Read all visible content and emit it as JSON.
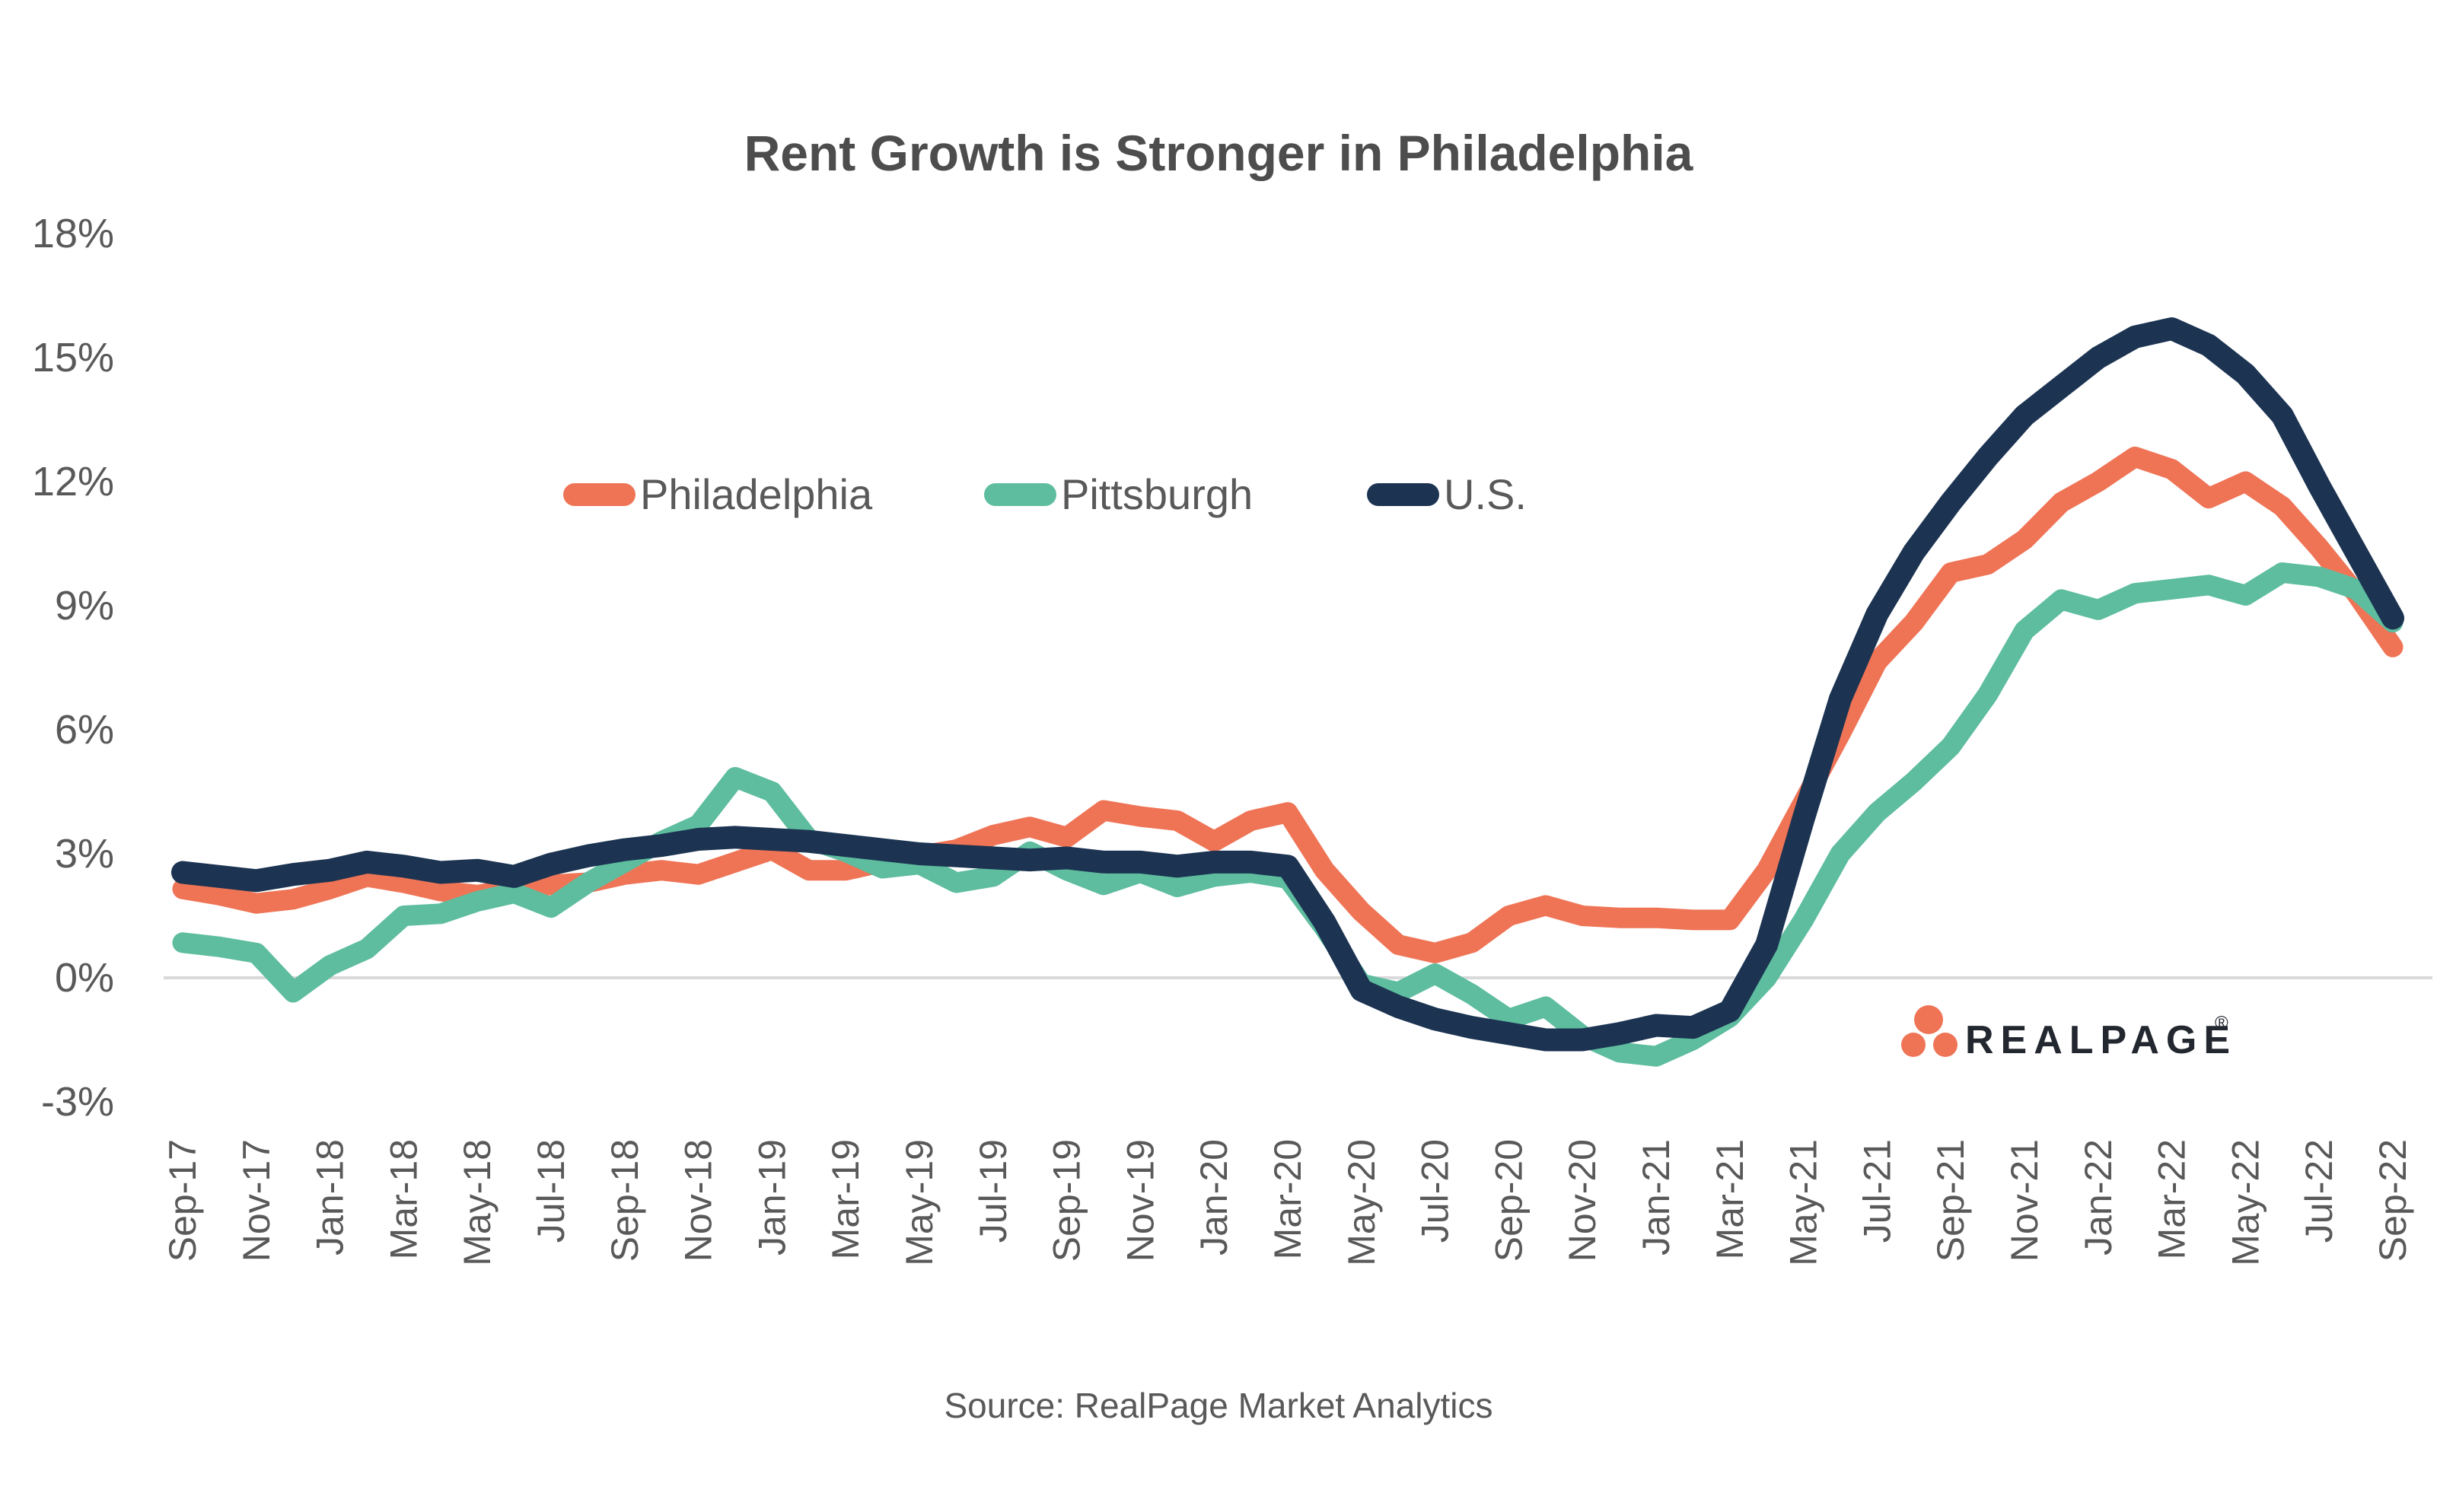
{
  "title": "Rent Growth is Stronger in Philadelphia",
  "source": "Source: RealPage Market Analytics",
  "logo": {
    "text": "REALPAGE",
    "reg": "®"
  },
  "colors": {
    "philadelphia": "#EF7456",
    "pittsburgh": "#5EBD9F",
    "us": "#1C3452",
    "axis_text": "#595959",
    "title_text": "#4D4D4D",
    "gridline": "#D9D9D9",
    "logo_text": "#232830",
    "logo_dots": "#EF7456"
  },
  "chart_data": {
    "type": "line",
    "title": "Rent Growth is Stronger in Philadelphia",
    "xlabel": "",
    "ylabel": "",
    "ylim": [
      -3,
      18
    ],
    "grid": "horizontal line at 0% only",
    "legend_position": "inside-top-left-row",
    "x_tick_every": 2,
    "ytick_values": [
      18,
      15,
      12,
      9,
      6,
      3,
      0,
      -3
    ],
    "ytick_labels": [
      "18%",
      "15%",
      "12%",
      "9%",
      "6%",
      "3%",
      "0%",
      "-3%"
    ],
    "x": [
      "Sep-17",
      "Oct-17",
      "Nov-17",
      "Dec-17",
      "Jan-18",
      "Feb-18",
      "Mar-18",
      "Apr-18",
      "May-18",
      "Jun-18",
      "Jul-18",
      "Aug-18",
      "Sep-18",
      "Oct-18",
      "Nov-18",
      "Dec-18",
      "Jan-19",
      "Feb-19",
      "Mar-19",
      "Apr-19",
      "May-19",
      "Jun-19",
      "Jul-19",
      "Aug-19",
      "Sep-19",
      "Oct-19",
      "Nov-19",
      "Dec-19",
      "Jan-20",
      "Feb-20",
      "Mar-20",
      "Apr-20",
      "May-20",
      "Jun-20",
      "Jul-20",
      "Aug-20",
      "Sep-20",
      "Oct-20",
      "Nov-20",
      "Dec-20",
      "Jan-21",
      "Feb-21",
      "Mar-21",
      "Apr-21",
      "May-21",
      "Jun-21",
      "Jul-21",
      "Aug-21",
      "Sep-21",
      "Oct-21",
      "Nov-21",
      "Dec-21",
      "Jan-22",
      "Feb-22",
      "Mar-22",
      "Apr-22",
      "May-22",
      "Jun-22",
      "Jul-22",
      "Aug-22",
      "Sep-22"
    ],
    "series": [
      {
        "name": "Philadelphia",
        "color": "#EF7456",
        "stroke_width": 27,
        "values": [
          2.15,
          2.0,
          1.8,
          1.9,
          2.15,
          2.45,
          2.3,
          2.1,
          2.0,
          2.15,
          2.25,
          2.3,
          2.5,
          2.6,
          2.5,
          2.8,
          3.1,
          2.6,
          2.6,
          2.8,
          2.95,
          3.1,
          3.45,
          3.65,
          3.4,
          4.05,
          3.9,
          3.8,
          3.3,
          3.8,
          4.0,
          2.6,
          1.6,
          0.8,
          0.6,
          0.85,
          1.5,
          1.75,
          1.5,
          1.45,
          1.45,
          1.4,
          1.4,
          2.6,
          4.25,
          5.9,
          7.65,
          8.6,
          9.8,
          10.0,
          10.6,
          11.5,
          12.0,
          12.6,
          12.3,
          11.6,
          12.0,
          11.4,
          10.4,
          9.3,
          8.0
        ]
      },
      {
        "name": "Pittsburgh",
        "color": "#5EBD9F",
        "stroke_width": 27,
        "values": [
          0.85,
          0.75,
          0.6,
          -0.35,
          0.3,
          0.7,
          1.5,
          1.55,
          1.85,
          2.05,
          1.7,
          2.3,
          2.8,
          3.3,
          3.7,
          4.85,
          4.5,
          3.35,
          3.05,
          2.65,
          2.75,
          2.3,
          2.45,
          3.05,
          2.6,
          2.25,
          2.55,
          2.2,
          2.45,
          2.55,
          2.4,
          1.2,
          -0.15,
          -0.35,
          0.1,
          -0.4,
          -1.0,
          -0.7,
          -1.4,
          -1.8,
          -1.9,
          -1.5,
          -0.95,
          0.0,
          1.4,
          3.0,
          4.0,
          4.75,
          5.6,
          6.85,
          8.4,
          9.15,
          8.9,
          9.3,
          9.4,
          9.5,
          9.25,
          9.8,
          9.7,
          9.4,
          8.6
        ]
      },
      {
        "name": "U.S.",
        "color": "#1C3452",
        "stroke_width": 30,
        "values": [
          2.55,
          2.45,
          2.35,
          2.5,
          2.6,
          2.8,
          2.7,
          2.55,
          2.6,
          2.45,
          2.75,
          2.95,
          3.1,
          3.2,
          3.35,
          3.4,
          3.35,
          3.3,
          3.2,
          3.1,
          3.0,
          2.95,
          2.9,
          2.85,
          2.9,
          2.8,
          2.8,
          2.7,
          2.8,
          2.8,
          2.7,
          1.35,
          -0.3,
          -0.7,
          -1.0,
          -1.2,
          -1.35,
          -1.5,
          -1.5,
          -1.35,
          -1.15,
          -1.2,
          -0.8,
          0.8,
          3.85,
          6.75,
          8.8,
          10.3,
          11.5,
          12.6,
          13.6,
          14.3,
          15.0,
          15.5,
          15.7,
          15.3,
          14.6,
          13.6,
          11.9,
          10.3,
          8.7
        ]
      }
    ]
  }
}
